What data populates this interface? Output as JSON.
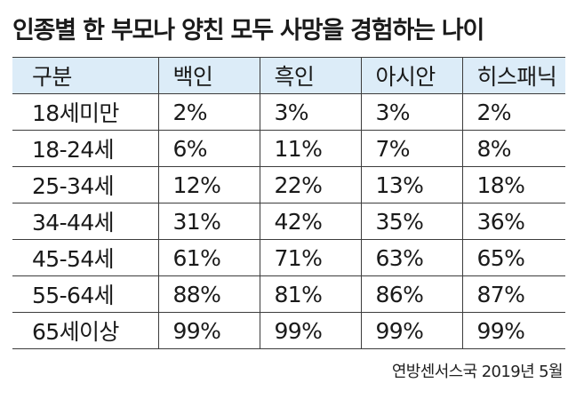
{
  "title": "인종별 한 부모나 양친 모두 사망을 경험하는 나이",
  "table": {
    "headers": [
      "구분",
      "백인",
      "흑인",
      "아시안",
      "히스패닉"
    ],
    "rows": [
      [
        "18세미만",
        "2%",
        "3%",
        "3%",
        "2%"
      ],
      [
        "18-24세",
        "6%",
        "11%",
        "7%",
        "8%"
      ],
      [
        "25-34세",
        "12%",
        "22%",
        "13%",
        "18%"
      ],
      [
        "34-44세",
        "31%",
        "42%",
        "35%",
        "36%"
      ],
      [
        "45-54세",
        "61%",
        "71%",
        "63%",
        "65%"
      ],
      [
        "55-64세",
        "88%",
        "81%",
        "86%",
        "87%"
      ],
      [
        "65세이상",
        "99%",
        "99%",
        "99%",
        "99%"
      ]
    ]
  },
  "source": "연방센서스국 2019년 5월",
  "colors": {
    "header_background": "#dcecf8",
    "rule_lines": "#3c3c3c"
  }
}
